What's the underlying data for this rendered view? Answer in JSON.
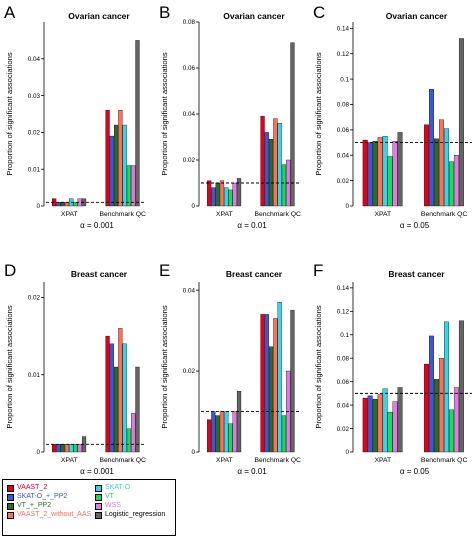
{
  "figure": {
    "series": [
      {
        "name": "VAAST_2",
        "color": "#e3001b"
      },
      {
        "name": "SKAT-O_+_PP2",
        "color": "#3c58d6"
      },
      {
        "name": "VT_+_PP2",
        "color": "#2b6b2b"
      },
      {
        "name": "VAAST_2_without_AAS",
        "color": "#ff7058"
      },
      {
        "name": "SKAT-O",
        "color": "#33d6ea"
      },
      {
        "name": "VT",
        "color": "#1ed95a"
      },
      {
        "name": "WSS",
        "color": "#e17ae2"
      },
      {
        "name": "Logistic_regression",
        "color": "#646464"
      }
    ]
  },
  "chart_data": [
    {
      "type": "bar",
      "panel_label": "A",
      "title": "Ovarian cancer",
      "ylabel": "Proportion of significant associations",
      "alpha_label": "α = 0.001",
      "categories": [
        "XPAT",
        "Benchmark QC"
      ],
      "ylim": [
        0,
        0.05
      ],
      "yticks": [
        0,
        0.01,
        0.02,
        0.03,
        0.04
      ],
      "ytick_labels": [
        "0",
        "0.01",
        "0.02",
        "0.03",
        "0.04"
      ],
      "ref_line": 0.001,
      "series": [
        {
          "name": "VAAST_2",
          "values": [
            0.002,
            0.026
          ]
        },
        {
          "name": "SKAT-O_+_PP2",
          "values": [
            0.001,
            0.019
          ]
        },
        {
          "name": "VT_+_PP2",
          "values": [
            0.001,
            0.022
          ]
        },
        {
          "name": "VAAST_2_without_AAS",
          "values": [
            0.001,
            0.026
          ]
        },
        {
          "name": "SKAT-O",
          "values": [
            0.002,
            0.022
          ]
        },
        {
          "name": "VT",
          "values": [
            0.001,
            0.011
          ]
        },
        {
          "name": "WSS",
          "values": [
            0.002,
            0.011
          ]
        },
        {
          "name": "Logistic_regression",
          "values": [
            0.002,
            0.045
          ]
        }
      ]
    },
    {
      "type": "bar",
      "panel_label": "B",
      "title": "Ovarian cancer",
      "ylabel": "Proportion of significant associations",
      "alpha_label": "α = 0.01",
      "categories": [
        "XPAT",
        "Benchmark QC"
      ],
      "ylim": [
        0,
        0.08
      ],
      "yticks": [
        0,
        0.02,
        0.04,
        0.06,
        0.08
      ],
      "ytick_labels": [
        "0",
        "0.02",
        "0.04",
        "0.06",
        "0.08"
      ],
      "ref_line": 0.01,
      "series": [
        {
          "name": "VAAST_2",
          "values": [
            0.011,
            0.039
          ]
        },
        {
          "name": "SKAT-O_+_PP2",
          "values": [
            0.008,
            0.032
          ]
        },
        {
          "name": "VT_+_PP2",
          "values": [
            0.01,
            0.029
          ]
        },
        {
          "name": "VAAST_2_without_AAS",
          "values": [
            0.011,
            0.038
          ]
        },
        {
          "name": "SKAT-O",
          "values": [
            0.008,
            0.036
          ]
        },
        {
          "name": "VT",
          "values": [
            0.007,
            0.018
          ]
        },
        {
          "name": "WSS",
          "values": [
            0.01,
            0.02
          ]
        },
        {
          "name": "Logistic_regression",
          "values": [
            0.012,
            0.071
          ]
        }
      ]
    },
    {
      "type": "bar",
      "panel_label": "C",
      "title": "Ovarian cancer",
      "ylabel": "Proportion of significant associations",
      "alpha_label": "α = 0.05",
      "categories": [
        "XPAT",
        "Benchmark QC"
      ],
      "ylim": [
        0,
        0.145
      ],
      "yticks": [
        0,
        0.02,
        0.04,
        0.06,
        0.08,
        0.1,
        0.12,
        0.14
      ],
      "ytick_labels": [
        "0",
        "0.02",
        "0.04",
        "0.06",
        "0.08",
        "0.1",
        "0.12",
        "0.14"
      ],
      "ref_line": 0.05,
      "series": [
        {
          "name": "VAAST_2",
          "values": [
            0.052,
            0.064
          ]
        },
        {
          "name": "SKAT-O_+_PP2",
          "values": [
            0.05,
            0.092
          ]
        },
        {
          "name": "VT_+_PP2",
          "values": [
            0.051,
            0.053
          ]
        },
        {
          "name": "VAAST_2_without_AAS",
          "values": [
            0.054,
            0.068
          ]
        },
        {
          "name": "SKAT-O",
          "values": [
            0.055,
            0.061
          ]
        },
        {
          "name": "VT",
          "values": [
            0.039,
            0.035
          ]
        },
        {
          "name": "WSS",
          "values": [
            0.051,
            0.04
          ]
        },
        {
          "name": "Logistic_regression",
          "values": [
            0.058,
            0.132
          ]
        }
      ]
    },
    {
      "type": "bar",
      "panel_label": "D",
      "title": "Breast cancer",
      "ylabel": "Proportion of significant associations",
      "alpha_label": "α = 0.001",
      "categories": [
        "XPAT",
        "Benchmark QC"
      ],
      "ylim": [
        0,
        0.022
      ],
      "yticks": [
        0,
        0.01,
        0.02
      ],
      "ytick_labels": [
        "0",
        "0.01",
        "0.02"
      ],
      "ref_line": 0.001,
      "series": [
        {
          "name": "VAAST_2",
          "values": [
            0.001,
            0.015
          ]
        },
        {
          "name": "SKAT-O_+_PP2",
          "values": [
            0.001,
            0.014
          ]
        },
        {
          "name": "VT_+_PP2",
          "values": [
            0.001,
            0.011
          ]
        },
        {
          "name": "VAAST_2_without_AAS",
          "values": [
            0.001,
            0.016
          ]
        },
        {
          "name": "SKAT-O",
          "values": [
            0.001,
            0.014
          ]
        },
        {
          "name": "VT",
          "values": [
            0.001,
            0.003
          ]
        },
        {
          "name": "WSS",
          "values": [
            0.001,
            0.005
          ]
        },
        {
          "name": "Logistic_regression",
          "values": [
            0.002,
            0.011
          ]
        }
      ]
    },
    {
      "type": "bar",
      "panel_label": "E",
      "title": "Breast cancer",
      "ylabel": "Proportion of significant associations",
      "alpha_label": "α = 0.01",
      "categories": [
        "XPAT",
        "Benchmark QC"
      ],
      "ylim": [
        0,
        0.042
      ],
      "yticks": [
        0,
        0.02,
        0.04
      ],
      "ytick_labels": [
        "0",
        "0.02",
        "0.04"
      ],
      "ref_line": 0.01,
      "series": [
        {
          "name": "VAAST_2",
          "values": [
            0.008,
            0.034
          ]
        },
        {
          "name": "SKAT-O_+_PP2",
          "values": [
            0.01,
            0.034
          ]
        },
        {
          "name": "VT_+_PP2",
          "values": [
            0.009,
            0.026
          ]
        },
        {
          "name": "VAAST_2_without_AAS",
          "values": [
            0.01,
            0.033
          ]
        },
        {
          "name": "SKAT-O",
          "values": [
            0.01,
            0.037
          ]
        },
        {
          "name": "VT",
          "values": [
            0.007,
            0.009
          ]
        },
        {
          "name": "WSS",
          "values": [
            0.01,
            0.02
          ]
        },
        {
          "name": "Logistic_regression",
          "values": [
            0.015,
            0.035
          ]
        }
      ]
    },
    {
      "type": "bar",
      "panel_label": "F",
      "title": "Breast cancer",
      "ylabel": "Proportion of significant associations",
      "alpha_label": "α = 0.05",
      "categories": [
        "XPAT",
        "Benchmark QC"
      ],
      "ylim": [
        0,
        0.145
      ],
      "yticks": [
        0,
        0.02,
        0.04,
        0.06,
        0.08,
        0.1,
        0.12,
        0.14
      ],
      "ytick_labels": [
        "0",
        "0.02",
        "0.04",
        "0.06",
        "0.08",
        "0.1",
        "0.12",
        "0.14"
      ],
      "ref_line": 0.05,
      "series": [
        {
          "name": "VAAST_2",
          "values": [
            0.046,
            0.075
          ]
        },
        {
          "name": "SKAT-O_+_PP2",
          "values": [
            0.048,
            0.099
          ]
        },
        {
          "name": "VT_+_PP2",
          "values": [
            0.045,
            0.062
          ]
        },
        {
          "name": "VAAST_2_without_AAS",
          "values": [
            0.049,
            0.08
          ]
        },
        {
          "name": "SKAT-O",
          "values": [
            0.054,
            0.111
          ]
        },
        {
          "name": "VT",
          "values": [
            0.034,
            0.036
          ]
        },
        {
          "name": "WSS",
          "values": [
            0.043,
            0.055
          ]
        },
        {
          "name": "Logistic_regression",
          "values": [
            0.055,
            0.112
          ]
        }
      ]
    }
  ]
}
